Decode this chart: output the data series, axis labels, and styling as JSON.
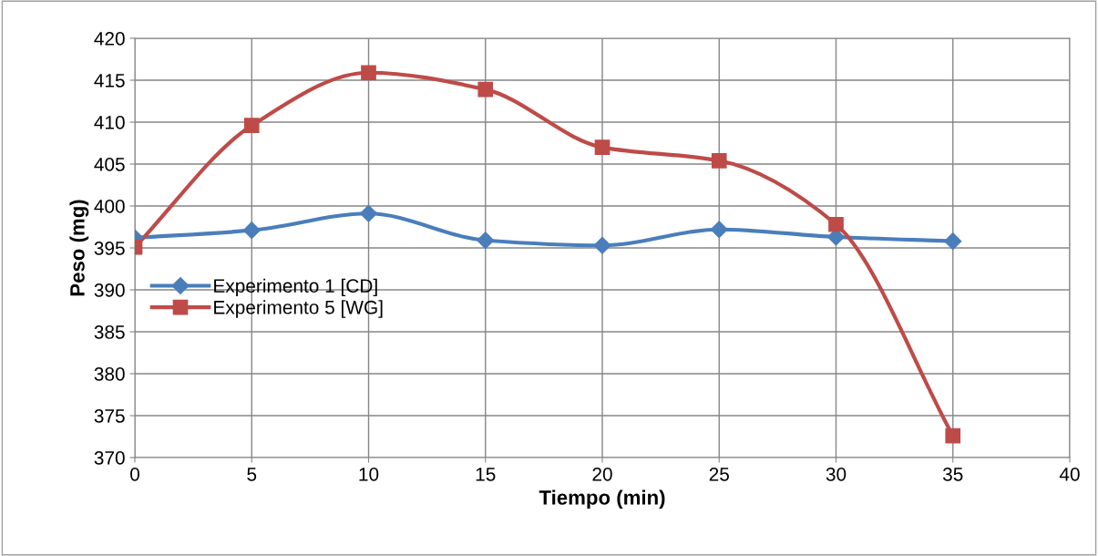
{
  "chart_data": {
    "type": "line",
    "xlabel": "Tiempo (min)",
    "ylabel": "Peso (mg)",
    "x": [
      0,
      5,
      10,
      15,
      20,
      25,
      30,
      35
    ],
    "series": [
      {
        "name": "Experimento 1 [CD]",
        "color": "#4a7ebb",
        "marker": "diamond",
        "values": [
          396.2,
          397.1,
          399.1,
          395.9,
          395.3,
          397.2,
          396.3,
          395.8
        ]
      },
      {
        "name": "Experimento 5 [WG]",
        "color": "#be4b48",
        "marker": "square",
        "values": [
          395.1,
          409.6,
          415.9,
          413.9,
          407.0,
          405.4,
          397.8,
          372.6
        ]
      }
    ],
    "xlim": [
      0,
      40
    ],
    "xticks": [
      0,
      5,
      10,
      15,
      20,
      25,
      30,
      35,
      40
    ],
    "ylim": [
      370,
      420
    ],
    "yticks": [
      370,
      375,
      380,
      385,
      390,
      395,
      400,
      405,
      410,
      415,
      420
    ],
    "grid": true,
    "legend": "left",
    "line_style": "solid"
  }
}
